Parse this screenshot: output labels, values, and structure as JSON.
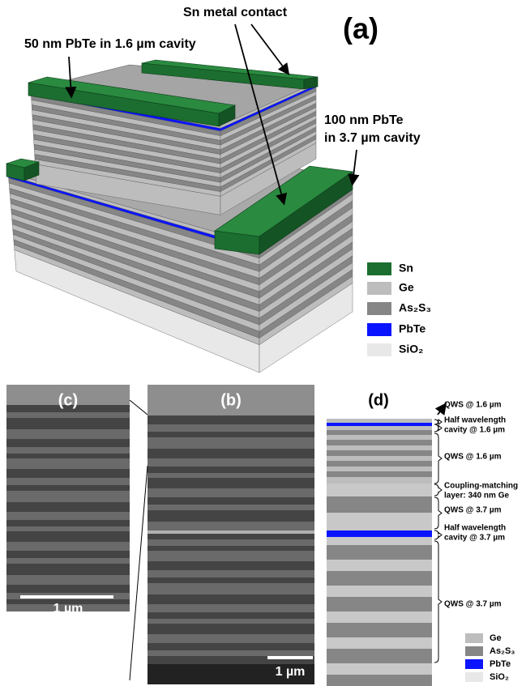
{
  "panel_a": {
    "label": "(a)",
    "annotations": {
      "contact": "Sn metal contact",
      "pbte_16": "50 nm PbTe in 1.6 µm cavity",
      "pbte_37": [
        "100 nm PbTe",
        "in 3.7 µm cavity"
      ]
    },
    "legend": [
      "Sn",
      "Ge",
      "As₂S₃",
      "PbTe",
      "SiO₂"
    ]
  },
  "panel_b": {
    "label": "(b)",
    "scale_bar": "1 µm"
  },
  "panel_c": {
    "label": "(c)",
    "scale_bar": "1 µm"
  },
  "panel_d": {
    "label": "(d)",
    "annotations": [
      [
        "QWS @ 1.6 µm"
      ],
      [
        "Half wavelength",
        "cavity @ 1.6 µm"
      ],
      [
        "QWS @ 1.6 µm"
      ],
      [
        "Coupling-matching",
        "layer: 340 nm Ge"
      ],
      [
        "QWS @ 3.7 µm"
      ],
      [
        "Half wavelength",
        "cavity @ 3.7 µm"
      ],
      [
        "QWS @ 3.7 µm"
      ]
    ],
    "legend": [
      "Ge",
      "As₂S₃",
      "PbTe",
      "SiO₂"
    ]
  }
}
